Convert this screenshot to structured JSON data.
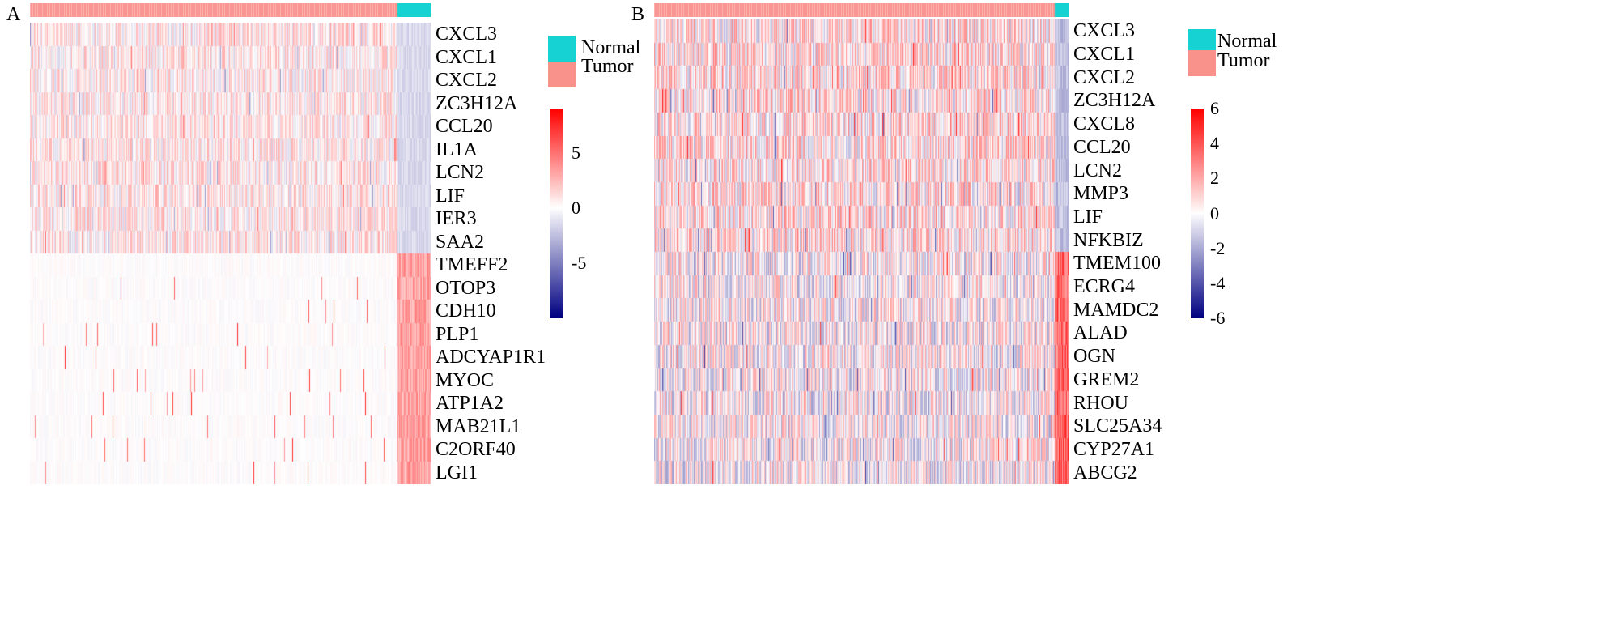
{
  "chart_data": [
    {
      "panel_label": "A",
      "type": "heatmap",
      "group_annotation": [
        "Tumor",
        "Normal"
      ],
      "legend": [
        {
          "label": "Normal",
          "color": "#17D2D2"
        },
        {
          "label": "Tumor",
          "color": "#FA928C"
        }
      ],
      "genes": [
        "CXCL3",
        "CXCL1",
        "CXCL2",
        "ZC3H12A",
        "CCL20",
        "IL1A",
        "LCN2",
        "LIF",
        "IER3",
        "SAA2",
        "TMEFF2",
        "OTOP3",
        "CDH10",
        "PLP1",
        "ADCYAP1R1",
        "MYOC",
        "ATP1A2",
        "MAB21L1",
        "C2ORF40",
        "LGI1"
      ],
      "colorbar": {
        "min": -10,
        "max": 9,
        "ticks": [
          5,
          0,
          -5
        ],
        "tick_labels": [
          "5",
          "0",
          "-5"
        ],
        "low_color": "#000080",
        "mid_color": "#FFFFFF",
        "high_color": "#FF0000"
      }
    },
    {
      "panel_label": "B",
      "type": "heatmap",
      "group_annotation": [
        "Tumor",
        "Normal"
      ],
      "legend": [
        {
          "label": "Normal",
          "color": "#17D2D2"
        },
        {
          "label": "Tumor",
          "color": "#FA928C"
        }
      ],
      "genes": [
        "CXCL3",
        "CXCL1",
        "CXCL2",
        "ZC3H12A",
        "CXCL8",
        "CCL20",
        "LCN2",
        "MMP3",
        "LIF",
        "NFKBIZ",
        "TMEM100",
        "ECRG4",
        "MAMDC2",
        "ALAD",
        "OGN",
        "GREM2",
        "RHOU",
        "SLC25A34",
        "CYP27A1",
        "ABCG2"
      ],
      "colorbar": {
        "min": -6,
        "max": 6,
        "ticks": [
          6,
          4,
          2,
          0,
          -2,
          -4,
          -6
        ],
        "tick_labels": [
          "6",
          "4",
          "2",
          "0",
          "-2",
          "-4",
          "-6"
        ],
        "low_color": "#000080",
        "mid_color": "#FFFFFF",
        "high_color": "#FF0000"
      }
    }
  ]
}
